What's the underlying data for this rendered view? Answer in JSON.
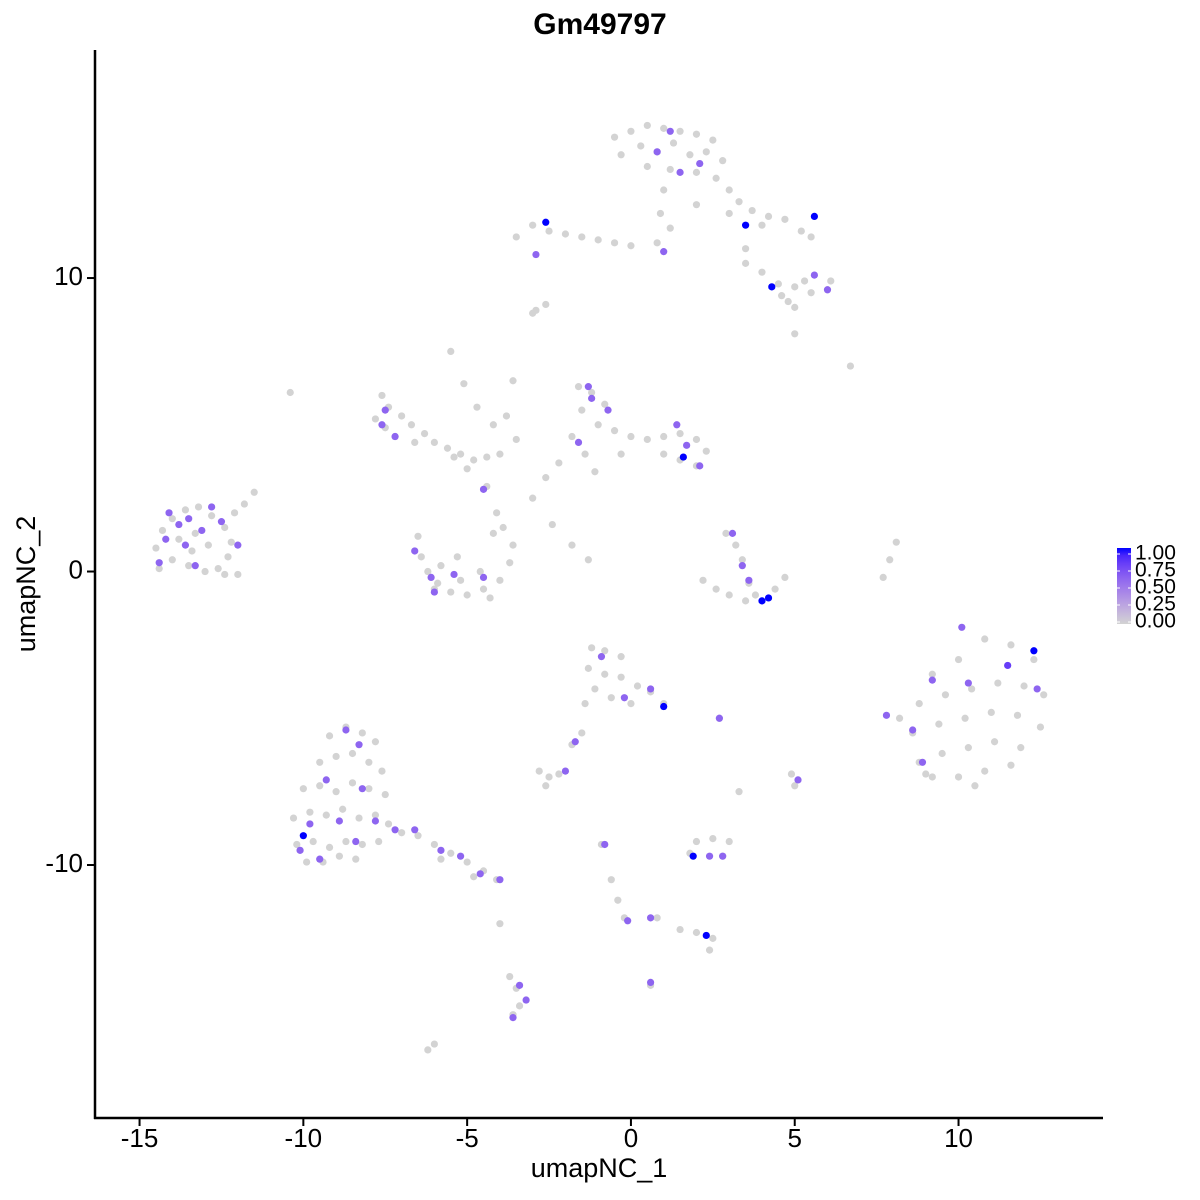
{
  "chart_data": {
    "type": "scatter",
    "title": "Gm49797",
    "xlabel": "umapNC_1",
    "ylabel": "umapNC_2",
    "xlim": [
      -16.36,
      14.41
    ],
    "ylim": [
      -18.62,
      17.77
    ],
    "xticks": [
      -15,
      -10,
      -5,
      0,
      5,
      10
    ],
    "yticks": [
      -10,
      0,
      10
    ],
    "low_color": "#d3d3d3",
    "high_color": "#0000ff",
    "colorbar": {
      "lim": [
        0,
        1
      ],
      "ticks": [
        {
          "value": 0,
          "label": "0.00"
        },
        {
          "value": 0.25,
          "label": "0.25"
        },
        {
          "value": 0.5,
          "label": "0.50"
        },
        {
          "value": 0.75,
          "label": "0.75"
        },
        {
          "value": 1,
          "label": "1.00"
        }
      ]
    },
    "x": [
      -0.5,
      0,
      0.5,
      1,
      1.5,
      2,
      2.5,
      -0.3,
      0.3,
      0.8,
      1.3,
      1.8,
      2.3,
      2.8,
      0.5,
      1.2,
      2,
      2.6,
      3,
      3.3,
      3.7,
      4.2,
      4.7,
      5.2,
      5.5,
      4,
      3,
      -3.5,
      -3,
      -2.5,
      -2,
      -1.5,
      -1,
      -0.5,
      0,
      0.8,
      1.2,
      0.9,
      3.5,
      4,
      4.5,
      5,
      5.5,
      6,
      4.8,
      5.3,
      4.6,
      6.1,
      5,
      1,
      2,
      3.5,
      -2.9,
      -2.6,
      -10.4,
      6.7,
      5,
      -14.5,
      -14.3,
      -14,
      -13.6,
      -13.2,
      -12.8,
      -12.4,
      -12.2,
      -12.3,
      -12.6,
      -13,
      -13.5,
      -14,
      -14.4,
      -13.8,
      -13.3,
      -12.9,
      -13.4,
      -12,
      -12.4,
      -11.8,
      -11.5,
      -12.1,
      -7.6,
      -7.4,
      -7,
      -6.7,
      -6.3,
      -6,
      -5.6,
      -5.2,
      -4.8,
      -4.4,
      -4,
      -5,
      -5.4,
      -7.8,
      -7.2,
      -6.6,
      -7.5,
      -5.5,
      -5.1,
      -4.7,
      -4.2,
      -3.6,
      -3.8,
      -3.5,
      -4.4,
      -4.1,
      -4.2,
      -6.5,
      -6.4,
      -6.2,
      -5.9,
      -5.5,
      -5,
      -4.5,
      -4,
      -3.7,
      -3.6,
      -3.9,
      -5.8,
      -5.2,
      -4.6,
      -5.3,
      -6,
      -4.3,
      -1.6,
      -1.2,
      -0.8,
      -1.5,
      -1,
      -0.5,
      0,
      0.5,
      1,
      1.5,
      2,
      2.3,
      2,
      1.5,
      1,
      -1.8,
      -1.4,
      -2.2,
      -2.6,
      -3,
      -1.1,
      -0.3,
      -2.4,
      -1.8,
      -1.3,
      2.9,
      3.2,
      3.4,
      2.2,
      2.6,
      3,
      3.5,
      4,
      4.4,
      4.7,
      3.6,
      3.8,
      8.1,
      7.9,
      7.7,
      9.2,
      10,
      10.8,
      11.6,
      12.3,
      8.8,
      9.6,
      10.4,
      11.2,
      12,
      12.6,
      8.6,
      9.4,
      10.2,
      11,
      11.8,
      12.5,
      8.8,
      9.5,
      10.3,
      11.1,
      11.9,
      9.2,
      10,
      10.8,
      11.6,
      8.2,
      9,
      10.5,
      -9.2,
      -8.7,
      -8.2,
      -7.8,
      -9.5,
      -9,
      -8.5,
      -8,
      -7.6,
      -10,
      -9.5,
      -9,
      -8.5,
      -8,
      -7.5,
      -10.3,
      -9.8,
      -9.3,
      -8.8,
      -8.3,
      -7.8,
      -7.4,
      -10.2,
      -9.7,
      -9.2,
      -8.7,
      -8.2,
      -7.7,
      -9.9,
      -9.4,
      -8.9,
      -8.4,
      -7,
      -6.5,
      -6,
      -5.5,
      -5,
      -4.5,
      -4.1,
      -5.8,
      -4.8,
      -1.2,
      -0.8,
      -0.3,
      -1.3,
      -0.8,
      -0.3,
      0.2,
      0.6,
      1,
      -1.1,
      -0.6,
      0,
      -1.4,
      -2.8,
      -2.5,
      -2.2,
      -2.6,
      -1.8,
      -1.5,
      2.7,
      3.3,
      5,
      4.9,
      2,
      2.5,
      3,
      1.8,
      2.8,
      -0.9,
      -0.6,
      -0.4,
      -0.2,
      0.8,
      1.5,
      2,
      2.5,
      2.4,
      0.6,
      -4,
      -3.7,
      -3.5,
      -3.4,
      -3.6,
      -6,
      -6.2,
      -3,
      1.2,
      0.8,
      2.1,
      1.5,
      -2.6,
      3.5,
      5.6,
      -2.9,
      1,
      4.3,
      5.6,
      6,
      -1.3,
      -1.2,
      -0.7,
      -1.6,
      1.4,
      1.6,
      2.1,
      1.7,
      -7.5,
      -7.6,
      -7.2,
      -4.5,
      -6.6,
      -6.1,
      -5.4,
      -4.5,
      -6,
      -14.1,
      -13.5,
      -12.8,
      -13.8,
      -13.1,
      -14.2,
      -13.6,
      -12.5,
      -12,
      -14.4,
      -13.3,
      3.1,
      3.4,
      4,
      4.2,
      3.6,
      -0.9,
      -0.2,
      0.6,
      1,
      2.7,
      -1.7,
      -2,
      5.1,
      1.9,
      2.4,
      2.8,
      -0.8,
      2.3,
      0.6,
      -0.1,
      0.6,
      -3.4,
      -3.2,
      -3.6,
      10.1,
      10.3,
      12.3,
      12.4,
      11.5,
      9.2,
      7.8,
      8.6,
      8.9,
      -10,
      -10.1,
      -9.5,
      -8.7,
      -8.3,
      -9.3,
      -8.2,
      -8.9,
      -7.8,
      -9.8,
      -8.4,
      -7.2,
      -5.8,
      -5.2,
      -4.6,
      -4,
      -6.6
    ],
    "values": [
      14.8,
      15,
      15.2,
      15.1,
      15,
      14.9,
      14.7,
      14.2,
      14.5,
      14.3,
      14.6,
      14.2,
      14.3,
      14,
      13.8,
      13.7,
      13.6,
      13.4,
      13,
      12.6,
      12.3,
      12.1,
      12,
      11.6,
      11.4,
      11.8,
      12.2,
      11.4,
      11.8,
      11.6,
      11.5,
      11.4,
      11.3,
      11.2,
      11.1,
      11.2,
      11.7,
      12.2,
      10.5,
      10.2,
      9.8,
      9.7,
      9.5,
      9.6,
      9.2,
      9.9,
      9.4,
      9.9,
      9,
      13,
      12.5,
      11,
      8.9,
      9.1,
      6.1,
      7,
      8.1,
      0.8,
      1.4,
      1.8,
      2.1,
      2.2,
      1.9,
      1.5,
      1,
      0.5,
      0.1,
      0,
      0.2,
      0.4,
      0.1,
      1.1,
      1.3,
      0.9,
      0.7,
      -0.1,
      -0.1,
      2.3,
      2.7,
      2,
      6,
      5.6,
      5.3,
      5,
      4.7,
      4.4,
      4.2,
      4,
      3.8,
      3.9,
      4,
      3.5,
      3.9,
      5.2,
      4.6,
      4.4,
      4.9,
      7.5,
      6.4,
      5.6,
      5,
      6.5,
      5.3,
      4.5,
      2.9,
      2,
      1.3,
      1.2,
      0.5,
      0,
      -0.4,
      -0.7,
      -0.8,
      -0.6,
      -0.3,
      0.3,
      0.9,
      1.5,
      0.2,
      -0.3,
      0,
      0.5,
      -0.6,
      -0.9,
      6.3,
      6.1,
      5.7,
      5.5,
      5,
      4.8,
      4.6,
      4.5,
      4.6,
      4.7,
      4.5,
      4.1,
      3.6,
      3.8,
      4,
      4.6,
      4,
      3.7,
      3.2,
      2.5,
      3.4,
      4,
      1.6,
      0.9,
      0.4,
      1.3,
      0.9,
      0.4,
      -0.3,
      -0.6,
      -0.8,
      -1,
      -1,
      -0.6,
      -0.2,
      -0.4,
      -0.8,
      1,
      0.4,
      -0.2,
      -3.5,
      -3,
      -2.3,
      -2.5,
      -3,
      -4.5,
      -4.2,
      -4,
      -3.8,
      -3.9,
      -4.2,
      -5.5,
      -5.2,
      -5,
      -4.8,
      -4.9,
      -5.3,
      -6.5,
      -6.2,
      -6,
      -5.8,
      -6,
      -7,
      -7,
      -6.8,
      -6.6,
      -5,
      -6.9,
      -7.3,
      -5.6,
      -5.3,
      -5.5,
      -5.8,
      -6.5,
      -6.3,
      -6.2,
      -6.5,
      -6.8,
      -7.4,
      -7.3,
      -7.5,
      -7.2,
      -7.4,
      -7.6,
      -8.4,
      -8.2,
      -8.3,
      -8.1,
      -8.4,
      -8.3,
      -8.6,
      -9.3,
      -9.2,
      -9.4,
      -9.2,
      -9.3,
      -9.2,
      -9.9,
      -9.9,
      -9.7,
      -9.8,
      -8.9,
      -9,
      -9.3,
      -9.6,
      -9.9,
      -10.2,
      -10.5,
      -9.8,
      -10.4,
      -2.6,
      -2.7,
      -2.9,
      -3.3,
      -3.5,
      -3.6,
      -3.9,
      -4.1,
      -4.5,
      -4,
      -4.3,
      -4.5,
      -4.5,
      -6.8,
      -7,
      -6.9,
      -7.3,
      -5.9,
      -5.5,
      -5,
      -7.5,
      -7.3,
      -6.9,
      -9.2,
      -9.1,
      -9.2,
      -9.6,
      -9.7,
      -9.3,
      -10.5,
      -11.2,
      -11.8,
      -11.8,
      -12.2,
      -12.3,
      -12.5,
      -12.9,
      -14.1,
      -12,
      -13.8,
      -14.2,
      -14.8,
      -15.1,
      -16.1,
      -16.3,
      8.8,
      15,
      14.3,
      13.9,
      13.6,
      11.9,
      11.8,
      12.1,
      10.8,
      10.9,
      9.7,
      10.1,
      9.6,
      6.3,
      5.9,
      5.5,
      4.4,
      5,
      3.9,
      3.6,
      4.3,
      5.5,
      5,
      4.6,
      2.8,
      0.7,
      -0.2,
      -0.1,
      -0.2,
      -0.7,
      2,
      1.8,
      2.2,
      1.6,
      1.4,
      1.1,
      0.9,
      1.7,
      0.9,
      0.3,
      0.2,
      1.3,
      0.2,
      -1,
      -0.9,
      -0.3,
      -2.9,
      -4.3,
      -4,
      -4.6,
      -5,
      -5.8,
      -6.8,
      -7.1,
      -9.7,
      -9.7,
      -9.7,
      -9.3,
      -12.4,
      -11.8,
      -11.9,
      -14,
      -14.1,
      -14.6,
      -15.2,
      -1.9,
      -3.8,
      -2.7,
      -4,
      -3.2,
      -3.7,
      -4.9,
      -5.4,
      -6.5,
      -9,
      -9.5,
      -9.8,
      -5.4,
      -5.9,
      -7.1,
      -7.4,
      -8.5,
      -8.5,
      -8.6,
      -9.2,
      -8.8,
      -9.5,
      -9.7,
      -10.3,
      -10.5,
      -8.8
    ],
    "expression": [
      0,
      0,
      0,
      0,
      0,
      0,
      0,
      0,
      0,
      0,
      0,
      0,
      0,
      0,
      0,
      0,
      0,
      0,
      0,
      0,
      0,
      0,
      0,
      0,
      0,
      0,
      0,
      0,
      0,
      0,
      0,
      0,
      0,
      0,
      0,
      0,
      0,
      0,
      0,
      0,
      0,
      0,
      0,
      0,
      0,
      0,
      0,
      0,
      0,
      0,
      0,
      0,
      0,
      0,
      0,
      0,
      0,
      0,
      0,
      0,
      0,
      0,
      0,
      0,
      0,
      0,
      0,
      0,
      0,
      0,
      0,
      0,
      0,
      0,
      0,
      0,
      0,
      0,
      0,
      0,
      0,
      0,
      0,
      0,
      0,
      0,
      0,
      0,
      0,
      0,
      0,
      0,
      0,
      0,
      0,
      0,
      0,
      0,
      0,
      0,
      0,
      0,
      0,
      0,
      0,
      0,
      0,
      0,
      0,
      0,
      0,
      0,
      0,
      0,
      0,
      0,
      0,
      0,
      0,
      0,
      0,
      0,
      0,
      0,
      0,
      0,
      0,
      0,
      0,
      0,
      0,
      0,
      0,
      0,
      0,
      0,
      0,
      0,
      0,
      0,
      0,
      0,
      0,
      0,
      0,
      0,
      0,
      0,
      0,
      0,
      0,
      0,
      0,
      0,
      0,
      0,
      0,
      0,
      0,
      0,
      0,
      0,
      0,
      0,
      0,
      0,
      0,
      0,
      0,
      0,
      0,
      0,
      0,
      0,
      0,
      0,
      0,
      0,
      0,
      0,
      0,
      0,
      0,
      0,
      0,
      0,
      0,
      0,
      0,
      0,
      0,
      0,
      0,
      0,
      0,
      0,
      0,
      0,
      0,
      0,
      0,
      0,
      0,
      0,
      0,
      0,
      0,
      0,
      0,
      0,
      0,
      0,
      0,
      0,
      0,
      0,
      0,
      0,
      0,
      0,
      0,
      0,
      0,
      0,
      0,
      0,
      0,
      0,
      0,
      0,
      0,
      0,
      0,
      0,
      0,
      0,
      0,
      0,
      0,
      0,
      0,
      0,
      0,
      0,
      0,
      0,
      0,
      0,
      0,
      0,
      0,
      0,
      0,
      0,
      0,
      0,
      0,
      0,
      0,
      0,
      0,
      0,
      0,
      0,
      0,
      0,
      0,
      0,
      0,
      0,
      0,
      0,
      0,
      0,
      0,
      0,
      0,
      0,
      0,
      0,
      0.6,
      0.6,
      0.6,
      0.6,
      1,
      1,
      1,
      0.6,
      0.6,
      1,
      0.6,
      0.6,
      0.6,
      0.6,
      0.6,
      0.6,
      0.6,
      1,
      0.6,
      0.6,
      0.6,
      0.6,
      0.6,
      0.6,
      0.6,
      0.6,
      0.6,
      0.6,
      0.6,
      0.6,
      0.6,
      0.6,
      0.6,
      0.6,
      0.6,
      0.6,
      0.6,
      0.6,
      0.6,
      0.6,
      0.6,
      0.6,
      1,
      1,
      0.6,
      0.6,
      0.6,
      0.6,
      1,
      0.6,
      0.6,
      0.6,
      0.6,
      1,
      0.6,
      0.6,
      0.6,
      1,
      0.6,
      0.6,
      0.6,
      0.6,
      0.6,
      0.6,
      0.6,
      0.6,
      1,
      0.6,
      0.8,
      0.6,
      0.6,
      0.6,
      0.6,
      1,
      0.6,
      0.6,
      0.6,
      0.6,
      0.6,
      0.6,
      0.6,
      0.6,
      0.6,
      0.6,
      0.6,
      0.6,
      0.6,
      0.6,
      0.6,
      0.6
    ]
  }
}
